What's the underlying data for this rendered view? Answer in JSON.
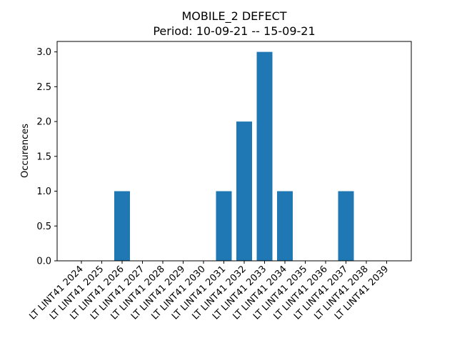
{
  "chart_data": {
    "type": "bar",
    "title": "MOBILE_2 DEFECT",
    "subtitle": "Period: 10-09-21 -- 15-09-21",
    "xlabel": "",
    "ylabel": "Occurences",
    "categories": [
      "LT LINT41 2024",
      "LT LINT41 2025",
      "LT LINT41 2026",
      "LT LINT41 2027",
      "LT LINT41 2028",
      "LT LINT41 2029",
      "LT LINT41 2030",
      "LT LINT41 2031",
      "LT LINT41 2032",
      "LT LINT41 2033",
      "LT LINT41 2034",
      "LT LINT41 2035",
      "LT LINT41 2036",
      "LT LINT41 2037",
      "LT LINT41 2038",
      "LT LINT41 2039"
    ],
    "values": [
      0,
      0,
      1,
      0,
      0,
      0,
      0,
      1,
      2,
      3,
      1,
      0,
      0,
      1,
      0,
      0
    ],
    "ylim": [
      0,
      3.15
    ],
    "yticks": [
      "0.0",
      "0.5",
      "1.0",
      "1.5",
      "2.0",
      "2.5",
      "3.0"
    ],
    "grid": false,
    "bar_color": "#1f77b4"
  }
}
